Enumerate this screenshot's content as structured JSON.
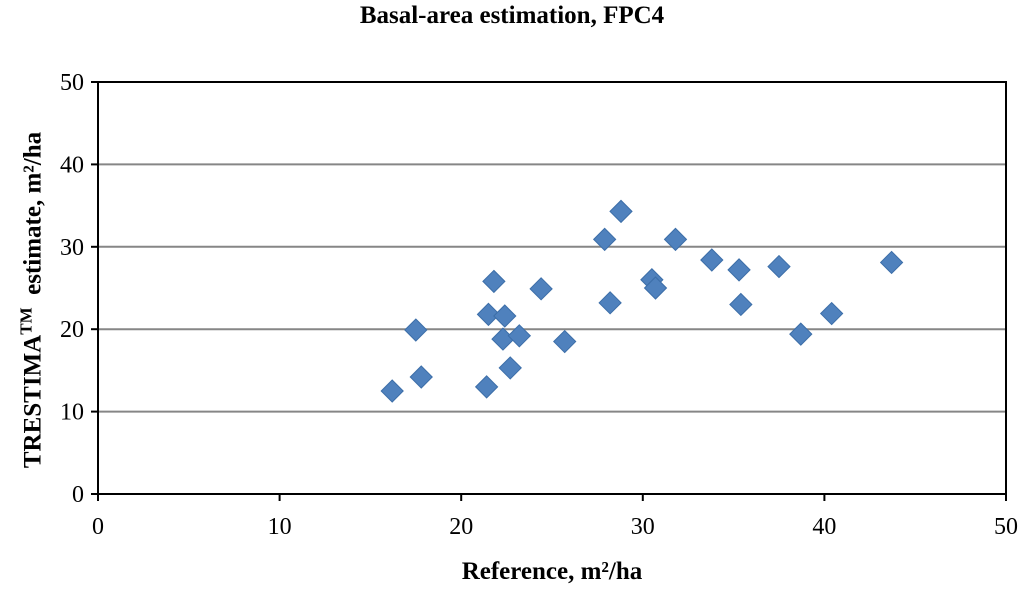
{
  "chart_data": {
    "type": "scatter",
    "title": "Basal-area estimation, FPC4",
    "xlabel": "Reference, m²/ha",
    "ylabel": {
      "main": "TRESTIMA",
      "superscript": "TM",
      "rest": "  estimate, m²/ha"
    },
    "xlim": [
      0,
      50
    ],
    "ylim": [
      0,
      50
    ],
    "xticks": [
      0,
      10,
      20,
      30,
      40,
      50
    ],
    "yticks": [
      0,
      10,
      20,
      30,
      40,
      50
    ],
    "grid": "horizontal",
    "marker": "diamond",
    "marker_color": "#4f81bd",
    "points": [
      {
        "x": 16.2,
        "y": 12.5
      },
      {
        "x": 17.5,
        "y": 19.9
      },
      {
        "x": 17.8,
        "y": 14.2
      },
      {
        "x": 21.4,
        "y": 13.0
      },
      {
        "x": 21.5,
        "y": 21.8
      },
      {
        "x": 21.8,
        "y": 25.8
      },
      {
        "x": 22.3,
        "y": 18.8
      },
      {
        "x": 22.4,
        "y": 21.6
      },
      {
        "x": 22.7,
        "y": 15.3
      },
      {
        "x": 23.2,
        "y": 19.2
      },
      {
        "x": 24.4,
        "y": 24.9
      },
      {
        "x": 25.7,
        "y": 18.5
      },
      {
        "x": 27.9,
        "y": 30.9
      },
      {
        "x": 28.2,
        "y": 23.2
      },
      {
        "x": 28.8,
        "y": 34.3
      },
      {
        "x": 30.5,
        "y": 26.0
      },
      {
        "x": 30.7,
        "y": 25.0
      },
      {
        "x": 31.8,
        "y": 30.9
      },
      {
        "x": 33.8,
        "y": 28.4
      },
      {
        "x": 35.3,
        "y": 27.2
      },
      {
        "x": 35.4,
        "y": 23.0
      },
      {
        "x": 37.5,
        "y": 27.6
      },
      {
        "x": 38.7,
        "y": 19.4
      },
      {
        "x": 40.4,
        "y": 21.9
      },
      {
        "x": 43.7,
        "y": 28.1
      }
    ]
  }
}
